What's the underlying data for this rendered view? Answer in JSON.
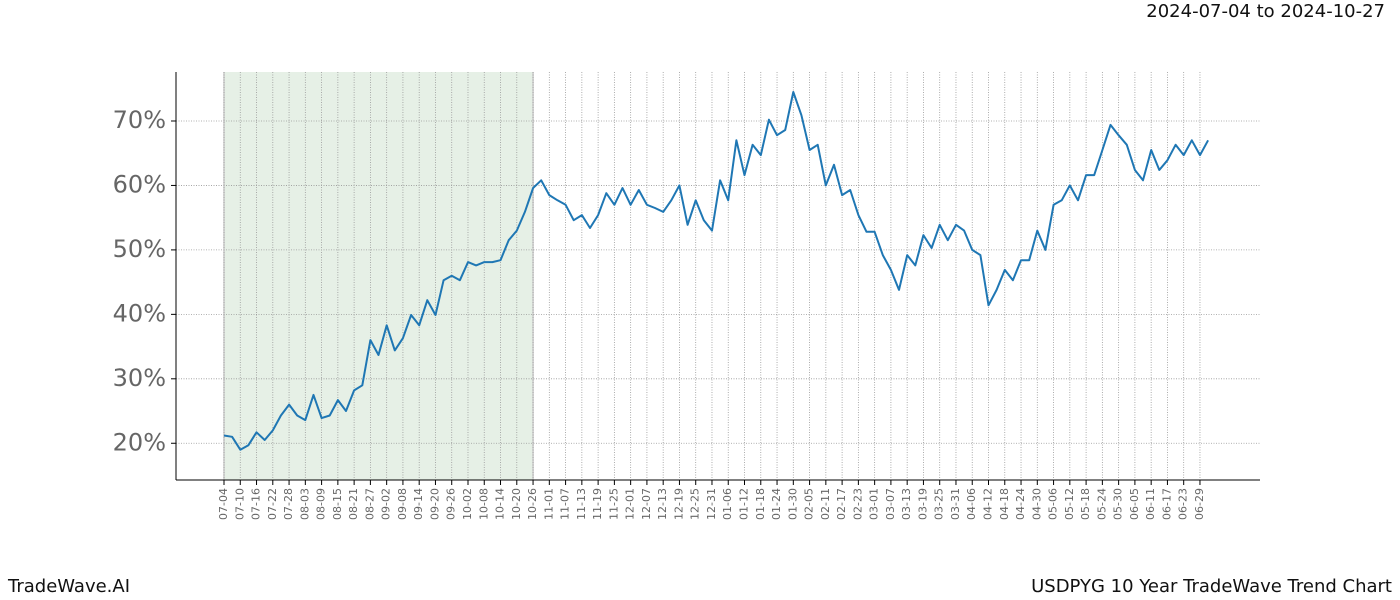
{
  "chart_data": {
    "type": "line",
    "date_range": "2024-07-04 to 2024-10-27",
    "brand": "TradeWave.AI",
    "title": "USDPYG 10 Year TradeWave Trend Chart",
    "categories": [
      "07-04",
      null,
      "07-10",
      null,
      "07-16",
      null,
      "07-22",
      null,
      "07-28",
      null,
      "08-03",
      null,
      "08-09",
      null,
      "08-15",
      null,
      "08-21",
      null,
      "08-27",
      null,
      "09-02",
      null,
      "09-08",
      null,
      "09-14",
      null,
      "09-20",
      null,
      "09-26",
      null,
      "10-02",
      null,
      "10-08",
      null,
      "10-14",
      null,
      "10-20",
      null,
      "10-26",
      null,
      "11-01",
      null,
      "11-07",
      null,
      "11-13",
      null,
      "11-19",
      null,
      "11-25",
      null,
      "12-01",
      null,
      "12-07",
      null,
      "12-13",
      null,
      "12-19",
      null,
      "12-25",
      null,
      "12-31",
      null,
      "01-06",
      null,
      "01-12",
      null,
      "01-18",
      null,
      "01-24",
      null,
      "01-30",
      null,
      "02-05",
      null,
      "02-11",
      null,
      "02-17",
      null,
      "02-23",
      null,
      "03-01",
      null,
      "03-07",
      null,
      "03-13",
      null,
      "03-19",
      null,
      "03-25",
      null,
      "03-31",
      null,
      "04-06",
      null,
      "04-12",
      null,
      "04-18",
      null,
      "04-24",
      null,
      "04-30",
      null,
      "05-06",
      null,
      "05-12",
      null,
      "05-18",
      null,
      "05-24",
      null,
      "05-30",
      null,
      "06-05",
      null,
      "06-11",
      null,
      "06-17",
      null,
      "06-23",
      null,
      "06-29",
      null
    ],
    "values": [
      21.2,
      21,
      19,
      19.7,
      21.7,
      20.5,
      22,
      24.3,
      26,
      24.3,
      23.6,
      27.5,
      23.9,
      24.3,
      26.7,
      25,
      28.2,
      29,
      36,
      33.7,
      38.3,
      34.4,
      36.3,
      39.9,
      38.3,
      42.2,
      39.9,
      45.3,
      46,
      45.3,
      48.1,
      47.6,
      48.1,
      48.1,
      48.4,
      51.5,
      53,
      55.9,
      59.6,
      60.8,
      58.5,
      57.7,
      57,
      54.6,
      55.4,
      53.4,
      55.4,
      58.8,
      57,
      59.6,
      57,
      59.3,
      57,
      56.5,
      55.9,
      57.7,
      60,
      53.9,
      57.7,
      54.6,
      53,
      60.8,
      57.7,
      67,
      61.6,
      66.3,
      64.7,
      70.2,
      67.8,
      68.6,
      74.5,
      70.9,
      65.5,
      66.3,
      60,
      63.2,
      58.5,
      59.3,
      55.4,
      52.8,
      52.8,
      49.2,
      46.9,
      43.8,
      49.2,
      47.6,
      52.3,
      50.3,
      53.9,
      51.5,
      53.9,
      53,
      50,
      49.2,
      41.4,
      43.8,
      46.9,
      45.3,
      48.4,
      48.4,
      53,
      50,
      57,
      57.7,
      60,
      57.7,
      61.6,
      61.6,
      65.5,
      69.4,
      67.8,
      66.3,
      62.4,
      60.8,
      65.5,
      62.4,
      63.9,
      66.3,
      64.7,
      67,
      64.7,
      67
    ],
    "color": "#1f77b4",
    "shade_color": "#e6f0e6",
    "shade_categories": [
      0,
      38
    ],
    "ylim": [
      14.3,
      77.6
    ],
    "yticks": [
      {
        "value": 20,
        "label": "20%"
      },
      {
        "value": 30,
        "label": "30%"
      },
      {
        "value": 40,
        "label": "40%"
      },
      {
        "value": 50,
        "label": "50%"
      },
      {
        "value": 60,
        "label": "60%"
      },
      {
        "value": 70,
        "label": "70%"
      }
    ],
    "grid": true
  }
}
